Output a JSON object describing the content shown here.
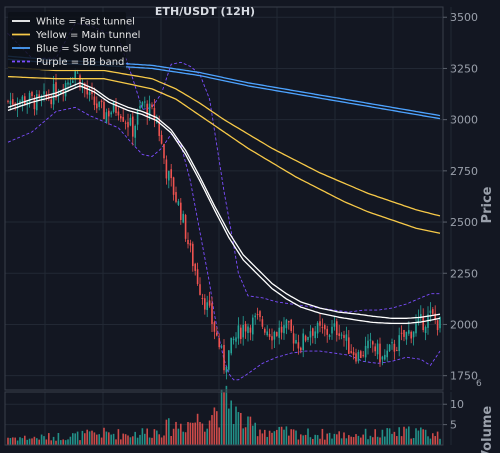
{
  "chart_data": {
    "type": "candlestick",
    "title": "ETH/USDT (12H)",
    "ylabel": "Price",
    "volume_label": "Volume",
    "volume_exponent": "6",
    "ylim": [
      1680,
      3550
    ],
    "yticks": [
      1750,
      2000,
      2250,
      2500,
      2750,
      3000,
      3250,
      3500
    ],
    "volume_ylim": [
      0,
      13
    ],
    "volume_yticks": [
      5,
      10
    ],
    "grid": true,
    "legend_position": "top-left",
    "colors": {
      "up": "#26a69a",
      "down": "#ef5350",
      "fast": "#ffffff",
      "main": "#f7c948",
      "slow": "#4da3ff",
      "bb": "#7c4dff"
    },
    "legend": [
      {
        "key": "fast",
        "label": "White = Fast tunnel",
        "style": "solid"
      },
      {
        "key": "main",
        "label": "Yellow = Main tunnel",
        "style": "solid"
      },
      {
        "key": "slow",
        "label": "Blue = Slow tunnel",
        "style": "solid"
      },
      {
        "key": "bb",
        "label": "Purple = BB band",
        "style": "dashed"
      }
    ],
    "close_anchors": [
      [
        0,
        3090
      ],
      [
        8,
        3100
      ],
      [
        13,
        3080
      ],
      [
        18,
        3120
      ],
      [
        24,
        3180
      ],
      [
        28,
        3240
      ],
      [
        34,
        3100
      ],
      [
        40,
        3030
      ],
      [
        46,
        3060
      ],
      [
        52,
        2950
      ],
      [
        56,
        3080
      ],
      [
        62,
        3000
      ],
      [
        66,
        2750
      ],
      [
        72,
        2550
      ],
      [
        76,
        2350
      ],
      [
        80,
        2180
      ],
      [
        84,
        2050
      ],
      [
        88,
        1900
      ],
      [
        90,
        1800
      ],
      [
        94,
        1920
      ],
      [
        98,
        1990
      ],
      [
        104,
        2020
      ],
      [
        110,
        1960
      ],
      [
        116,
        1980
      ],
      [
        122,
        1900
      ],
      [
        126,
        1980
      ],
      [
        132,
        1960
      ],
      [
        138,
        1980
      ],
      [
        142,
        1890
      ],
      [
        146,
        1850
      ],
      [
        152,
        1900
      ],
      [
        156,
        1830
      ],
      [
        160,
        1880
      ],
      [
        166,
        1950
      ],
      [
        170,
        1990
      ],
      [
        176,
        2040
      ],
      [
        180,
        2000
      ]
    ],
    "band_anchors": [
      [
        0,
        2890,
        3420
      ],
      [
        10,
        2940,
        3300
      ],
      [
        20,
        3040,
        3300
      ],
      [
        28,
        3060,
        3470
      ],
      [
        34,
        3020,
        3460
      ],
      [
        40,
        2990,
        3430
      ],
      [
        46,
        2960,
        3400
      ],
      [
        52,
        2880,
        3200
      ],
      [
        56,
        2830,
        3050
      ],
      [
        60,
        2820,
        3060
      ],
      [
        64,
        2860,
        3130
      ],
      [
        68,
        2930,
        3270
      ],
      [
        72,
        2880,
        3280
      ],
      [
        76,
        2700,
        3260
      ],
      [
        80,
        2450,
        3220
      ],
      [
        84,
        2200,
        3100
      ],
      [
        86,
        2050,
        2950
      ],
      [
        88,
        1930,
        2800
      ],
      [
        90,
        1830,
        2650
      ],
      [
        92,
        1760,
        2520
      ],
      [
        94,
        1730,
        2390
      ],
      [
        96,
        1730,
        2250
      ],
      [
        100,
        1760,
        2140
      ],
      [
        106,
        1810,
        2130
      ],
      [
        112,
        1840,
        2110
      ],
      [
        118,
        1860,
        2100
      ],
      [
        124,
        1870,
        2090
      ],
      [
        130,
        1870,
        2080
      ],
      [
        136,
        1860,
        2070
      ],
      [
        142,
        1850,
        2060
      ],
      [
        148,
        1820,
        2070
      ],
      [
        154,
        1810,
        2070
      ],
      [
        160,
        1820,
        2080
      ],
      [
        166,
        1840,
        2100
      ],
      [
        172,
        1830,
        2130
      ],
      [
        176,
        1800,
        2150
      ],
      [
        180,
        1870,
        2150
      ]
    ],
    "tunnel_anchors": {
      "fast_upper": [
        [
          0,
          3060
        ],
        [
          10,
          3100
        ],
        [
          20,
          3130
        ],
        [
          30,
          3180
        ],
        [
          36,
          3150
        ],
        [
          42,
          3100
        ],
        [
          50,
          3060
        ],
        [
          56,
          3040
        ],
        [
          62,
          3010
        ],
        [
          68,
          2950
        ],
        [
          74,
          2850
        ],
        [
          80,
          2720
        ],
        [
          86,
          2580
        ],
        [
          92,
          2450
        ],
        [
          98,
          2340
        ],
        [
          104,
          2270
        ],
        [
          110,
          2200
        ],
        [
          116,
          2150
        ],
        [
          122,
          2110
        ],
        [
          130,
          2080
        ],
        [
          138,
          2060
        ],
        [
          146,
          2050
        ],
        [
          152,
          2040
        ],
        [
          160,
          2030
        ],
        [
          166,
          2030
        ],
        [
          172,
          2035
        ],
        [
          180,
          2050
        ]
      ],
      "fast_lower": [
        [
          0,
          3045
        ],
        [
          10,
          3085
        ],
        [
          20,
          3115
        ],
        [
          30,
          3165
        ],
        [
          36,
          3135
        ],
        [
          42,
          3085
        ],
        [
          50,
          3045
        ],
        [
          56,
          3025
        ],
        [
          62,
          2995
        ],
        [
          68,
          2935
        ],
        [
          74,
          2830
        ],
        [
          80,
          2700
        ],
        [
          86,
          2560
        ],
        [
          92,
          2425
        ],
        [
          98,
          2315
        ],
        [
          104,
          2245
        ],
        [
          110,
          2175
        ],
        [
          116,
          2125
        ],
        [
          122,
          2085
        ],
        [
          130,
          2055
        ],
        [
          138,
          2035
        ],
        [
          146,
          2020
        ],
        [
          152,
          2010
        ],
        [
          160,
          2005
        ],
        [
          166,
          2005
        ],
        [
          172,
          2012
        ],
        [
          180,
          2030
        ]
      ],
      "main_upper": [
        [
          0,
          3255
        ],
        [
          20,
          3240
        ],
        [
          40,
          3240
        ],
        [
          60,
          3200
        ],
        [
          70,
          3150
        ],
        [
          80,
          3080
        ],
        [
          90,
          3000
        ],
        [
          100,
          2930
        ],
        [
          110,
          2860
        ],
        [
          120,
          2800
        ],
        [
          130,
          2740
        ],
        [
          140,
          2690
        ],
        [
          150,
          2640
        ],
        [
          160,
          2600
        ],
        [
          170,
          2560
        ],
        [
          180,
          2530
        ]
      ],
      "main_lower": [
        [
          0,
          3210
        ],
        [
          20,
          3200
        ],
        [
          40,
          3200
        ],
        [
          60,
          3150
        ],
        [
          70,
          3100
        ],
        [
          80,
          3020
        ],
        [
          90,
          2940
        ],
        [
          100,
          2860
        ],
        [
          110,
          2790
        ],
        [
          120,
          2720
        ],
        [
          130,
          2660
        ],
        [
          140,
          2600
        ],
        [
          150,
          2550
        ],
        [
          160,
          2510
        ],
        [
          170,
          2470
        ],
        [
          180,
          2445
        ]
      ],
      "slow_upper": [
        [
          0,
          3310
        ],
        [
          20,
          3290
        ],
        [
          40,
          3280
        ],
        [
          60,
          3265
        ],
        [
          80,
          3230
        ],
        [
          100,
          3180
        ],
        [
          120,
          3140
        ],
        [
          140,
          3100
        ],
        [
          160,
          3060
        ],
        [
          180,
          3020
        ]
      ],
      "slow_lower": [
        [
          0,
          3295
        ],
        [
          20,
          3275
        ],
        [
          40,
          3265
        ],
        [
          60,
          3250
        ],
        [
          80,
          3215
        ],
        [
          100,
          3165
        ],
        [
          120,
          3125
        ],
        [
          140,
          3085
        ],
        [
          160,
          3045
        ],
        [
          180,
          3005
        ]
      ]
    },
    "volume_anchors": [
      [
        0,
        2
      ],
      [
        10,
        1.8
      ],
      [
        20,
        2.2
      ],
      [
        30,
        2.5
      ],
      [
        40,
        3
      ],
      [
        50,
        2.8
      ],
      [
        60,
        3.5
      ],
      [
        70,
        5
      ],
      [
        76,
        6
      ],
      [
        82,
        7
      ],
      [
        86,
        9
      ],
      [
        90,
        10
      ],
      [
        92,
        12
      ],
      [
        96,
        7
      ],
      [
        100,
        5
      ],
      [
        110,
        3.5
      ],
      [
        120,
        3
      ],
      [
        130,
        2.8
      ],
      [
        140,
        2.6
      ],
      [
        150,
        2.8
      ],
      [
        160,
        3
      ],
      [
        170,
        3.5
      ],
      [
        180,
        2.5
      ]
    ]
  }
}
